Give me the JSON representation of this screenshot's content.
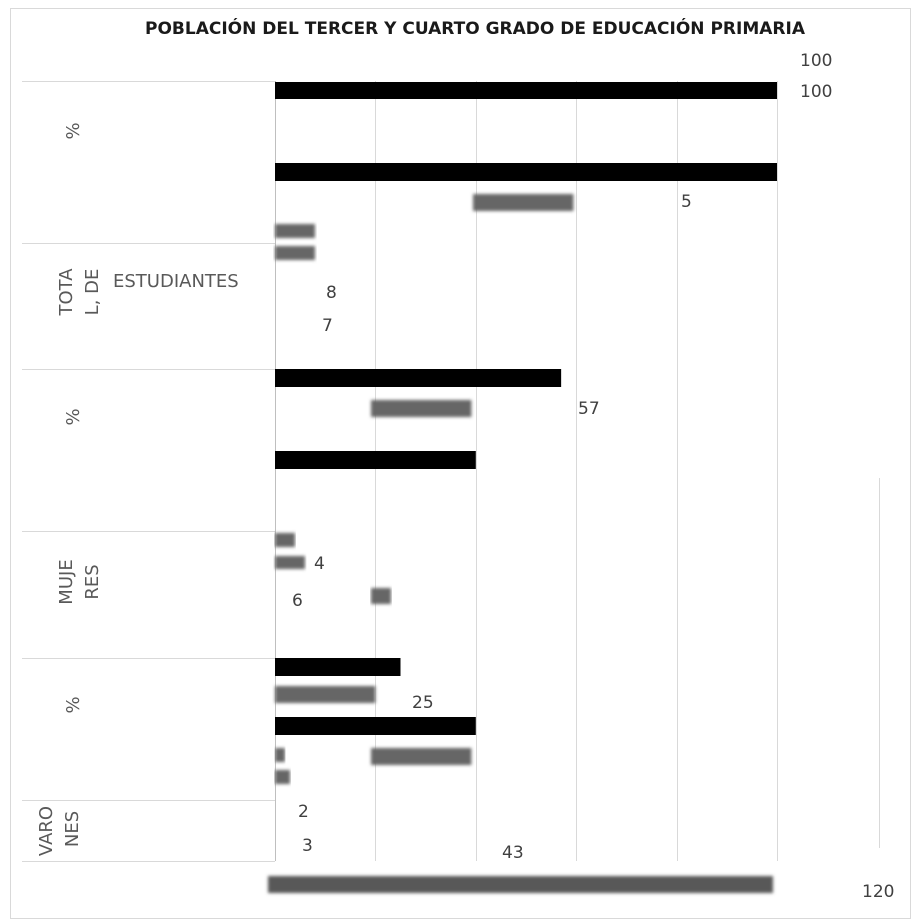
{
  "chart_data": {
    "type": "bar",
    "orientation": "horizontal",
    "title": "POBLACIÓN DEL TERCER Y CUARTO GRADO DE EDUCACIÓN PRIMARIA",
    "categories": [
      {
        "id": "pct_total",
        "labels": [
          "%"
        ]
      },
      {
        "id": "total",
        "labels": [
          "TOTA",
          "L, DE",
          "ESTUDIANTES"
        ]
      },
      {
        "id": "pct_mujeres",
        "labels": [
          "%"
        ]
      },
      {
        "id": "mujeres",
        "labels": [
          "MUJE",
          "RES"
        ]
      },
      {
        "id": "pct_varones",
        "labels": [
          "%"
        ]
      },
      {
        "id": "varones",
        "labels": [
          "VARO",
          "NES"
        ]
      }
    ],
    "series": [
      {
        "values": [
          100,
          8,
          57,
          4,
          25,
          2
        ],
        "color": "#000000"
      },
      {
        "values": [
          20,
          8,
          20,
          4,
          20,
          2
        ],
        "color": "#7f7f7f"
      },
      {
        "values": [
          100,
          7,
          40,
          6,
          40,
          3
        ],
        "color": "#000000"
      },
      {
        "values": [
          20,
          7,
          20,
          6,
          20,
          3
        ],
        "color": "#7f7f7f"
      }
    ],
    "data_labels": [
      "100",
      "100",
      "5",
      "8",
      "7",
      "57",
      "4",
      "6",
      "25",
      "2",
      "3",
      "43",
      "120"
    ],
    "xlim": [
      0,
      100
    ],
    "gridlines": true,
    "legend": false
  }
}
